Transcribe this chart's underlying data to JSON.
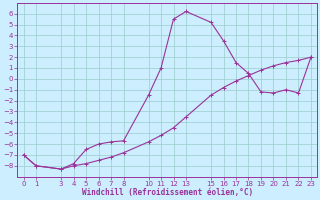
{
  "title": "",
  "xlabel": "Windchill (Refroidissement éolien,°C)",
  "background_color": "#cceeff",
  "grid_color": "#99cccc",
  "line_color": "#993399",
  "x_hours": [
    0,
    1,
    3,
    4,
    5,
    6,
    7,
    8,
    10,
    11,
    12,
    13,
    15,
    16,
    17,
    18,
    19,
    20,
    21,
    22,
    23
  ],
  "temp_line1": [
    -7.0,
    -8.0,
    -8.3,
    -8.0,
    -7.8,
    -7.5,
    -7.2,
    -6.8,
    -5.8,
    -5.2,
    -4.5,
    -3.5,
    -1.5,
    -0.8,
    -0.2,
    0.3,
    0.8,
    1.2,
    1.5,
    1.7,
    2.0
  ],
  "temp_line2": [
    -7.0,
    -8.0,
    -8.3,
    -7.8,
    -6.5,
    -6.0,
    -5.8,
    -5.7,
    -1.5,
    1.0,
    5.5,
    6.2,
    5.2,
    3.5,
    1.5,
    0.5,
    -1.2,
    -1.3,
    -1.0,
    -1.3,
    2.0
  ],
  "ylim": [
    -9.0,
    7.0
  ],
  "xlim": [
    -0.5,
    23.5
  ],
  "yticks": [
    -8,
    -7,
    -6,
    -5,
    -4,
    -3,
    -2,
    -1,
    0,
    1,
    2,
    3,
    4,
    5,
    6
  ],
  "xticks": [
    0,
    1,
    3,
    4,
    5,
    6,
    7,
    8,
    10,
    11,
    12,
    13,
    15,
    16,
    17,
    18,
    19,
    20,
    21,
    22,
    23
  ],
  "tick_fontsize": 5.0,
  "xlabel_fontsize": 5.5
}
